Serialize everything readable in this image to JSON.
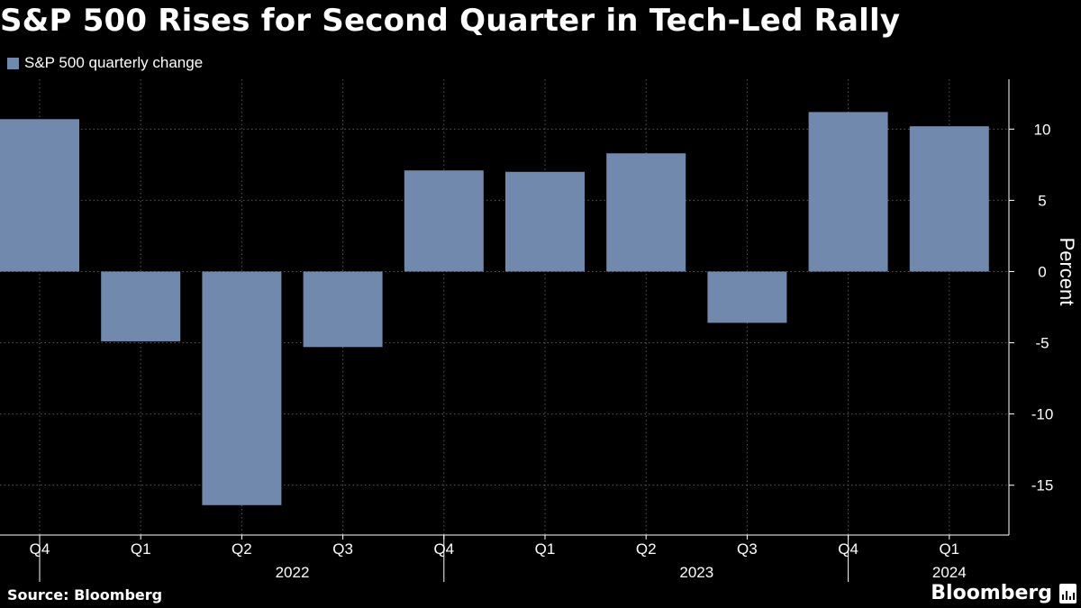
{
  "title": "S&P 500 Rises for Second Quarter in Tech-Led Rally",
  "footer": {
    "source": "Source: Bloomberg",
    "brand": "Bloomberg"
  },
  "colors": {
    "bar": "#7189ad",
    "background": "#000000",
    "grid": "#5a5a5a",
    "text": "#ffffff"
  },
  "chart_data": {
    "type": "bar",
    "title": "S&P 500 Rises for Second Quarter in Tech-Led Rally",
    "legend": "S&P 500 quarterly change",
    "legend_position": "top-left",
    "categories": [
      "Q4",
      "Q1",
      "Q2",
      "Q3",
      "Q4",
      "Q1",
      "Q2",
      "Q3",
      "Q4",
      "Q1"
    ],
    "year_groups": [
      {
        "label": "2022",
        "start": 1,
        "end": 4
      },
      {
        "label": "2023",
        "start": 5,
        "end": 8
      },
      {
        "label": "2024",
        "start": 9,
        "end": 9
      }
    ],
    "values": [
      10.7,
      -4.9,
      -16.4,
      -5.3,
      7.1,
      7.0,
      8.3,
      -3.6,
      11.2,
      10.2
    ],
    "ylabel": "Percent",
    "xlabel": "",
    "ylim": [
      -18.5,
      13.5
    ],
    "yticks": [
      10,
      5,
      0,
      -5,
      -10,
      -15
    ],
    "ytick_labels": [
      "10",
      "5",
      "0",
      "-5",
      "-10",
      "-15"
    ],
    "grid": true
  }
}
